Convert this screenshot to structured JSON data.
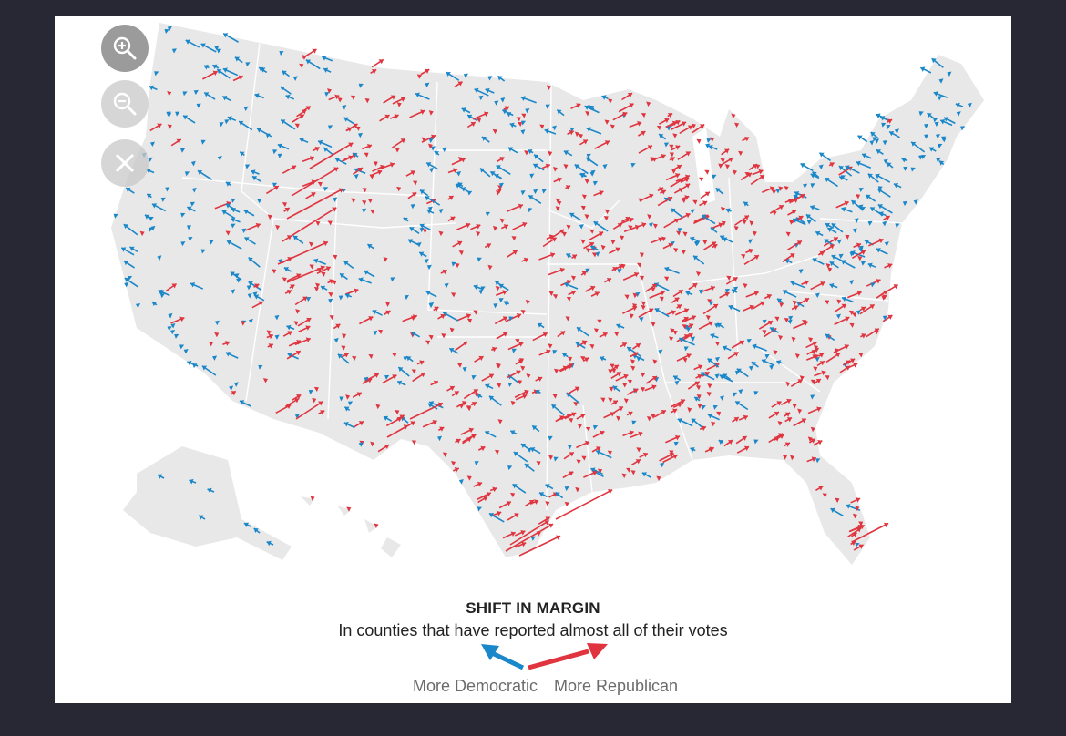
{
  "controls": {
    "zoom_in": {
      "icon": "zoom-in-icon",
      "label": "+"
    },
    "zoom_out": {
      "icon": "zoom-out-icon",
      "label": "−"
    },
    "reset": {
      "icon": "close-icon",
      "label": "×"
    }
  },
  "legend": {
    "title": "SHIFT IN MARGIN",
    "subtitle": "In counties that have reported almost all of their votes",
    "democratic_label": "More Democratic",
    "republican_label": "More Republican"
  },
  "colors": {
    "democratic": "#1a87c9",
    "republican": "#e0343f",
    "land": "#e8e8e8",
    "background": "#272833"
  }
}
